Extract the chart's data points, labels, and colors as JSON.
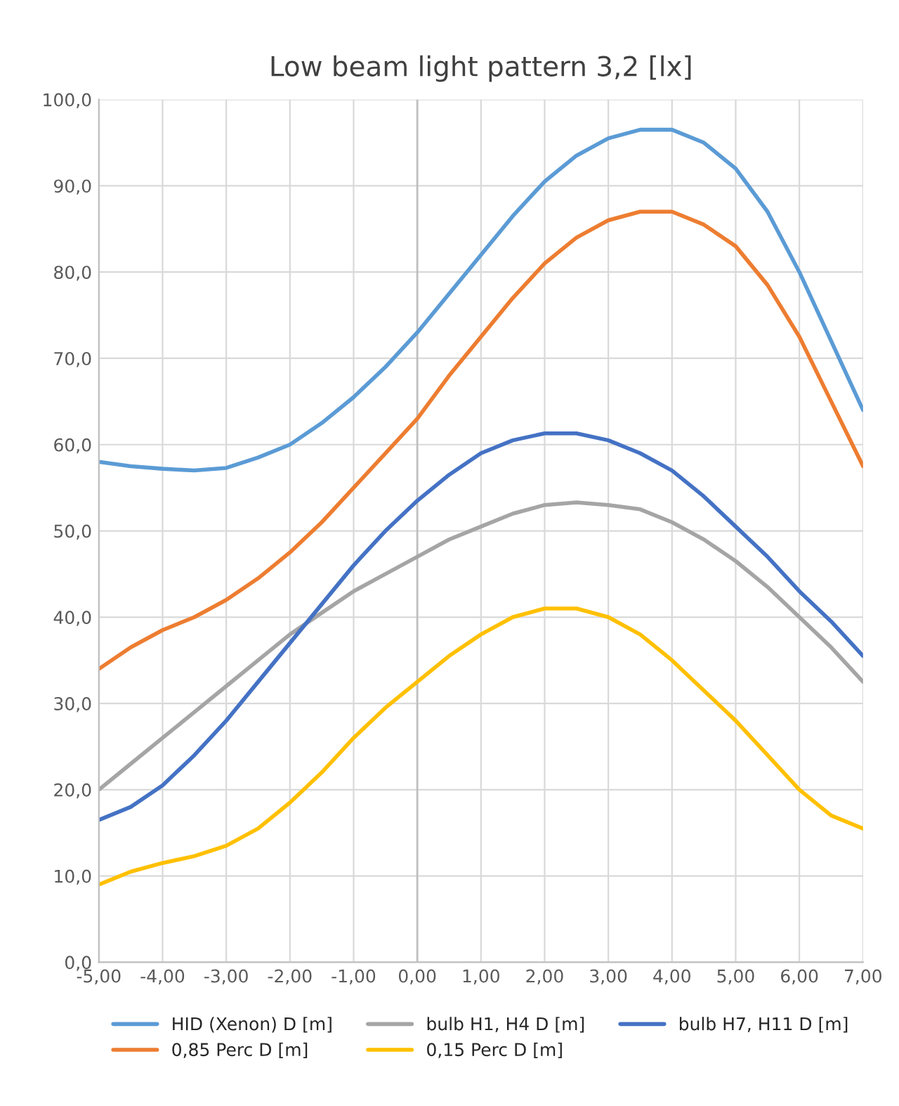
{
  "chart_data": {
    "type": "line",
    "title": "Low beam light pattern 3,2 [lx]",
    "x": [
      -5,
      -4.5,
      -4,
      -3.5,
      -3,
      -2.5,
      -2,
      -1.5,
      -1,
      -0.5,
      0,
      0.5,
      1,
      1.5,
      2,
      2.5,
      3,
      3.5,
      4,
      4.5,
      5,
      5.5,
      6,
      6.5,
      7
    ],
    "series": [
      {
        "name": "HID (Xenon) D [m]",
        "color": "#5b9bd5",
        "values": [
          58,
          57.5,
          57.2,
          57,
          57.3,
          58.5,
          60,
          62.5,
          65.5,
          69,
          73,
          77.5,
          82,
          86.5,
          90.5,
          93.5,
          95.5,
          96.5,
          96.5,
          95,
          92,
          87,
          80,
          72,
          64
        ]
      },
      {
        "name": "0,85 Perc D [m]",
        "color": "#ed7d31",
        "values": [
          34,
          36.5,
          38.5,
          40,
          42,
          44.5,
          47.5,
          51,
          55,
          59,
          63,
          68,
          72.5,
          77,
          81,
          84,
          86,
          87,
          87,
          85.5,
          83,
          78.5,
          72.5,
          65,
          57.5
        ]
      },
      {
        "name": "bulb H1, H4 D [m]",
        "color": "#a5a5a5",
        "values": [
          20,
          23,
          26,
          29,
          32,
          35,
          38,
          40.5,
          43,
          45,
          47,
          49,
          50.5,
          52,
          53,
          53.3,
          53,
          52.5,
          51,
          49,
          46.5,
          43.5,
          40,
          36.5,
          32.5
        ]
      },
      {
        "name": "0,15 Perc D [m]",
        "color": "#ffc000",
        "values": [
          9,
          10.5,
          11.5,
          12.3,
          13.5,
          15.5,
          18.5,
          22,
          26,
          29.5,
          32.5,
          35.5,
          38,
          40,
          41,
          41,
          40,
          38,
          35,
          31.5,
          28,
          24,
          20,
          17,
          15.5
        ]
      },
      {
        "name": "bulb H7, H11 D [m]",
        "color": "#4472c4",
        "values": [
          16.5,
          18,
          20.5,
          24,
          28,
          32.5,
          37,
          41.5,
          46,
          50,
          53.5,
          56.5,
          59,
          60.5,
          61.3,
          61.3,
          60.5,
          59,
          57,
          54,
          50.5,
          47,
          43,
          39.5,
          35.5
        ]
      }
    ],
    "xlim": [
      -5,
      7
    ],
    "xticks": [
      {
        "value": -5,
        "label": "-5,00"
      },
      {
        "value": -4,
        "label": "-4,00"
      },
      {
        "value": -3,
        "label": "-3,00"
      },
      {
        "value": -2,
        "label": "-2,00"
      },
      {
        "value": -1,
        "label": "-1,00"
      },
      {
        "value": 0,
        "label": "0,00"
      },
      {
        "value": 1,
        "label": "1,00"
      },
      {
        "value": 2,
        "label": "2,00"
      },
      {
        "value": 3,
        "label": "3,00"
      },
      {
        "value": 4,
        "label": "4,00"
      },
      {
        "value": 5,
        "label": "5,00"
      },
      {
        "value": 6,
        "label": "6,00"
      },
      {
        "value": 7,
        "label": "7,00"
      }
    ],
    "ylim": [
      0,
      100
    ],
    "yticks": [
      {
        "value": 0,
        "label": "0,0"
      },
      {
        "value": 10,
        "label": "10,0"
      },
      {
        "value": 20,
        "label": "20,0"
      },
      {
        "value": 30,
        "label": "30,0"
      },
      {
        "value": 40,
        "label": "40,0"
      },
      {
        "value": 50,
        "label": "50,0"
      },
      {
        "value": 60,
        "label": "60,0"
      },
      {
        "value": 70,
        "label": "70,0"
      },
      {
        "value": 80,
        "label": "80,0"
      },
      {
        "value": 90,
        "label": "90,0"
      },
      {
        "value": 100,
        "label": "100,0"
      }
    ],
    "grid": true,
    "legend": "bottom",
    "marker": "none",
    "line_style": "solid"
  }
}
